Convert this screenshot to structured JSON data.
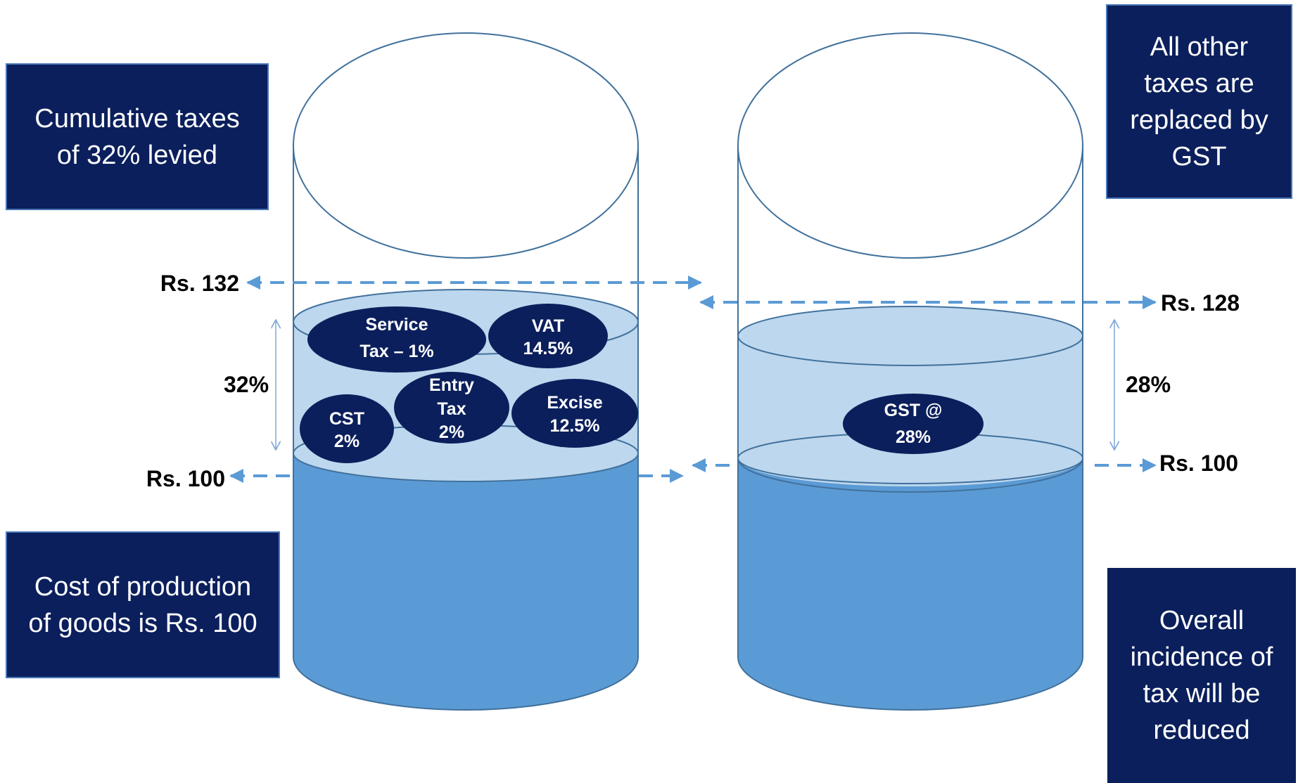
{
  "boxes": {
    "cumulative": "Cumulative taxes of 32% levied",
    "replaced": "All other taxes are replaced by GST",
    "cost": "Cost of production of goods is Rs. 100",
    "reduced": "Overall incidence of tax will be reduced"
  },
  "left_jar": {
    "top_price": "Rs. 132",
    "base_price": "Rs. 100",
    "tax_percent": "32%",
    "taxes": {
      "service_tax": [
        "Service",
        "Tax – 1%"
      ],
      "vat": [
        "VAT",
        "14.5%"
      ],
      "cst": [
        "CST",
        "2%"
      ],
      "entry_tax": [
        "Entry",
        "Tax",
        "2%"
      ],
      "excise": [
        "Excise",
        "12.5%"
      ]
    }
  },
  "right_jar": {
    "top_price": "Rs. 128",
    "base_price": "Rs. 100",
    "tax_percent": "28%",
    "gst": [
      "GST @",
      "28%"
    ]
  },
  "colors": {
    "navy": "#0b1f5c",
    "base_fill": "#5b9bd5",
    "tax_fill": "#bdd7ee",
    "outline": "#41719c",
    "arrow": "#5b9bd5"
  }
}
